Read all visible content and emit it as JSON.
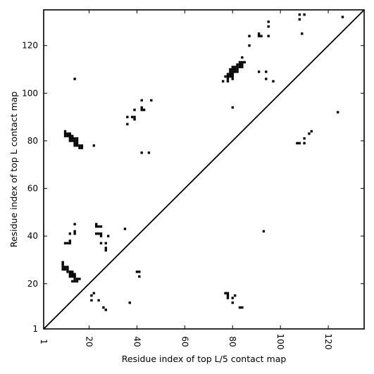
{
  "chart_data": {
    "type": "scatter",
    "title": "",
    "xlabel": "Residue index of top L/5 contact map",
    "ylabel": "Residue index of top L contact map",
    "xlim": [
      1,
      135
    ],
    "ylim": [
      1,
      135
    ],
    "xticks": [
      1,
      20,
      40,
      60,
      80,
      100,
      120
    ],
    "yticks": [
      1,
      20,
      40,
      60,
      80,
      100,
      120
    ],
    "xtick_labels": [
      "1",
      "20",
      "40",
      "60",
      "80",
      "100",
      "120"
    ],
    "ytick_labels": [
      "1",
      "20",
      "40",
      "60",
      "80",
      "100",
      "120"
    ],
    "grid": false,
    "diagonal": true,
    "marker_color": "#000000",
    "series": [
      {
        "region": "upper-left",
        "points": [
          [
            10,
            84
          ],
          [
            10,
            83
          ],
          [
            10,
            82
          ],
          [
            11,
            83
          ],
          [
            11,
            82
          ],
          [
            12,
            83
          ],
          [
            12,
            82
          ],
          [
            12,
            81
          ],
          [
            12,
            80
          ],
          [
            13,
            82
          ],
          [
            13,
            81
          ],
          [
            13,
            80
          ],
          [
            14,
            81
          ],
          [
            14,
            80
          ],
          [
            14,
            79
          ],
          [
            14,
            78
          ],
          [
            15,
            81
          ],
          [
            15,
            80
          ],
          [
            15,
            79
          ],
          [
            15,
            78
          ],
          [
            16,
            78
          ],
          [
            16,
            77
          ],
          [
            17,
            78
          ],
          [
            17,
            77
          ],
          [
            14,
            106
          ],
          [
            22,
            78
          ],
          [
            36,
            90
          ],
          [
            36,
            87
          ],
          [
            38,
            90
          ],
          [
            39,
            93
          ],
          [
            39,
            90
          ],
          [
            39,
            89
          ],
          [
            42,
            97
          ],
          [
            42,
            94
          ],
          [
            42,
            93
          ],
          [
            43,
            93
          ],
          [
            46,
            97
          ],
          [
            42,
            75
          ],
          [
            45,
            75
          ],
          [
            76,
            105
          ],
          [
            77,
            107
          ],
          [
            78,
            108
          ],
          [
            78,
            107
          ],
          [
            78,
            106
          ],
          [
            78,
            105
          ],
          [
            79,
            110
          ],
          [
            79,
            109
          ],
          [
            79,
            108
          ],
          [
            79,
            107
          ],
          [
            80,
            111
          ],
          [
            80,
            110
          ],
          [
            80,
            109
          ],
          [
            80,
            108
          ],
          [
            80,
            107
          ],
          [
            80,
            106
          ],
          [
            81,
            111
          ],
          [
            81,
            110
          ],
          [
            81,
            109
          ],
          [
            82,
            112
          ],
          [
            82,
            111
          ],
          [
            82,
            110
          ],
          [
            82,
            109
          ],
          [
            83,
            113
          ],
          [
            83,
            112
          ],
          [
            83,
            111
          ],
          [
            84,
            113
          ],
          [
            84,
            112
          ],
          [
            84,
            111
          ],
          [
            85,
            113
          ],
          [
            84,
            115
          ],
          [
            80,
            94
          ],
          [
            87,
            124
          ],
          [
            87,
            120
          ],
          [
            91,
            125
          ],
          [
            91,
            124
          ],
          [
            92,
            124
          ],
          [
            91,
            109
          ],
          [
            94,
            109
          ],
          [
            94,
            106
          ],
          [
            95,
            130
          ],
          [
            95,
            128
          ],
          [
            95,
            124
          ],
          [
            97,
            105
          ],
          [
            108,
            133
          ],
          [
            108,
            131
          ],
          [
            109,
            125
          ],
          [
            110,
            133
          ],
          [
            107,
            79
          ],
          [
            108,
            79
          ],
          [
            110,
            79
          ],
          [
            110,
            81
          ],
          [
            112,
            83
          ],
          [
            113,
            84
          ],
          [
            124,
            92
          ],
          [
            126,
            132
          ]
        ]
      },
      {
        "region": "lower-right",
        "points": [
          [
            10,
            37
          ],
          [
            11,
            37
          ],
          [
            12,
            38
          ],
          [
            12,
            37
          ],
          [
            12,
            41
          ],
          [
            14,
            42
          ],
          [
            14,
            41
          ],
          [
            14,
            45
          ],
          [
            23,
            45
          ],
          [
            23,
            44
          ],
          [
            24,
            44
          ],
          [
            25,
            44
          ],
          [
            23,
            41
          ],
          [
            24,
            41
          ],
          [
            25,
            41
          ],
          [
            25,
            40
          ],
          [
            25,
            37
          ],
          [
            28,
            40
          ],
          [
            27,
            37
          ],
          [
            27,
            35
          ],
          [
            27,
            34
          ],
          [
            35,
            43
          ],
          [
            9,
            29
          ],
          [
            9,
            28
          ],
          [
            9,
            27
          ],
          [
            9,
            26
          ],
          [
            10,
            27
          ],
          [
            10,
            26
          ],
          [
            11,
            27
          ],
          [
            11,
            26
          ],
          [
            11,
            25
          ],
          [
            12,
            25
          ],
          [
            12,
            24
          ],
          [
            13,
            25
          ],
          [
            13,
            24
          ],
          [
            13,
            23
          ],
          [
            14,
            24
          ],
          [
            14,
            23
          ],
          [
            14,
            22
          ],
          [
            14,
            21
          ],
          [
            15,
            22
          ],
          [
            15,
            21
          ],
          [
            16,
            22
          ],
          [
            12,
            23
          ],
          [
            13,
            21
          ],
          [
            21,
            15
          ],
          [
            22,
            16
          ],
          [
            21,
            13
          ],
          [
            24,
            13
          ],
          [
            26,
            10
          ],
          [
            27,
            9
          ],
          [
            37,
            12
          ],
          [
            40,
            25
          ],
          [
            41,
            25
          ],
          [
            41,
            23
          ],
          [
            77,
            16
          ],
          [
            78,
            16
          ],
          [
            78,
            15
          ],
          [
            78,
            14
          ],
          [
            80,
            14
          ],
          [
            80,
            12
          ],
          [
            81,
            15
          ],
          [
            83,
            10
          ],
          [
            84,
            10
          ],
          [
            93,
            42
          ]
        ]
      }
    ]
  }
}
